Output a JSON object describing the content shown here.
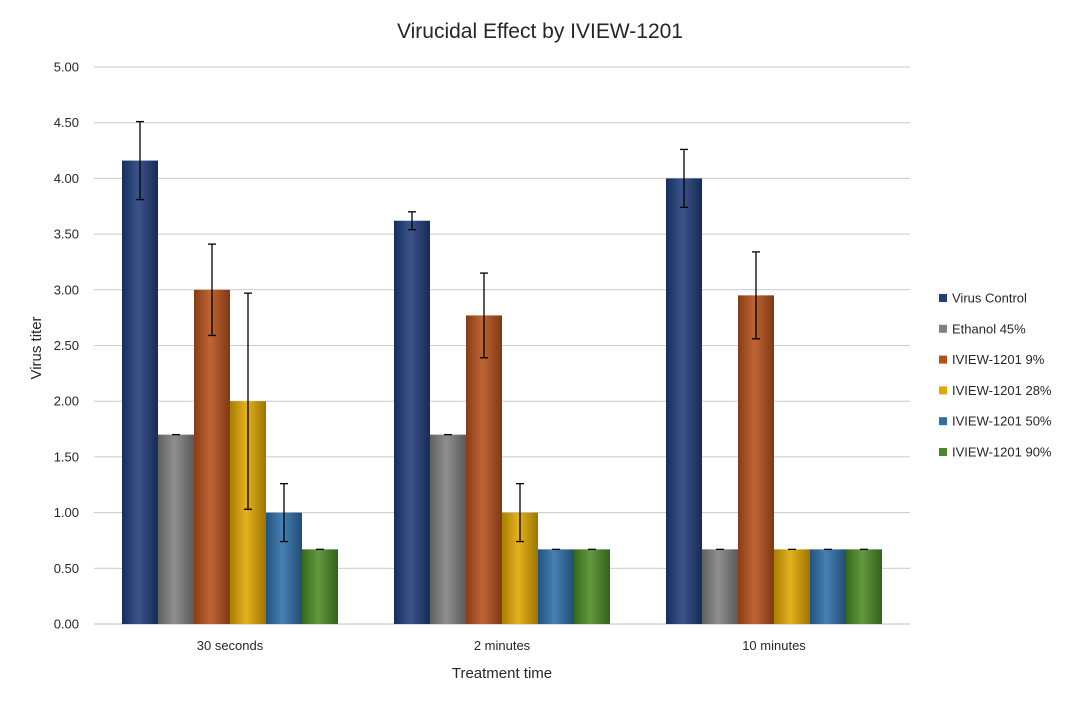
{
  "chart_data": {
    "type": "bar",
    "title": "Virucidal Effect by IVIEW-1201",
    "xlabel": "Treatment time",
    "ylabel": "Virus titer",
    "ylim": [
      0,
      5
    ],
    "yticks": [
      "0.00",
      "0.50",
      "1.00",
      "1.50",
      "2.00",
      "2.50",
      "3.00",
      "3.50",
      "4.00",
      "4.50",
      "5.00"
    ],
    "ytick_values": [
      0,
      0.5,
      1,
      1.5,
      2,
      2.5,
      3,
      3.5,
      4,
      4.5,
      5
    ],
    "grid": true,
    "legend_position": "right",
    "categories": [
      "30 seconds",
      "2 minutes",
      "10 minutes"
    ],
    "series": [
      {
        "name": "Virus Control",
        "color": "#1f3d7a",
        "values": [
          4.16,
          3.62,
          4.0
        ],
        "errors": [
          0.35,
          0.08,
          0.26
        ]
      },
      {
        "name": "Ethanol 45%",
        "color": "#808080",
        "values": [
          1.7,
          1.7,
          0.67
        ],
        "errors": [
          0,
          0,
          0
        ]
      },
      {
        "name": "IVIEW-1201 9%",
        "color": "#b5501a",
        "values": [
          3.0,
          2.77,
          2.95
        ],
        "errors": [
          0.41,
          0.38,
          0.39
        ]
      },
      {
        "name": "IVIEW-1201 28%",
        "color": "#e0a800",
        "values": [
          2.0,
          1.0,
          0.67
        ],
        "errors": [
          0.97,
          0.26,
          0
        ]
      },
      {
        "name": "IVIEW-1201 50%",
        "color": "#2e6fa8",
        "values": [
          1.0,
          0.67,
          0.67
        ],
        "errors": [
          0.26,
          0,
          0
        ]
      },
      {
        "name": "IVIEW-1201 90%",
        "color": "#4a8a25",
        "values": [
          0.67,
          0.67,
          0.67
        ],
        "errors": [
          0,
          0,
          0
        ]
      }
    ]
  }
}
